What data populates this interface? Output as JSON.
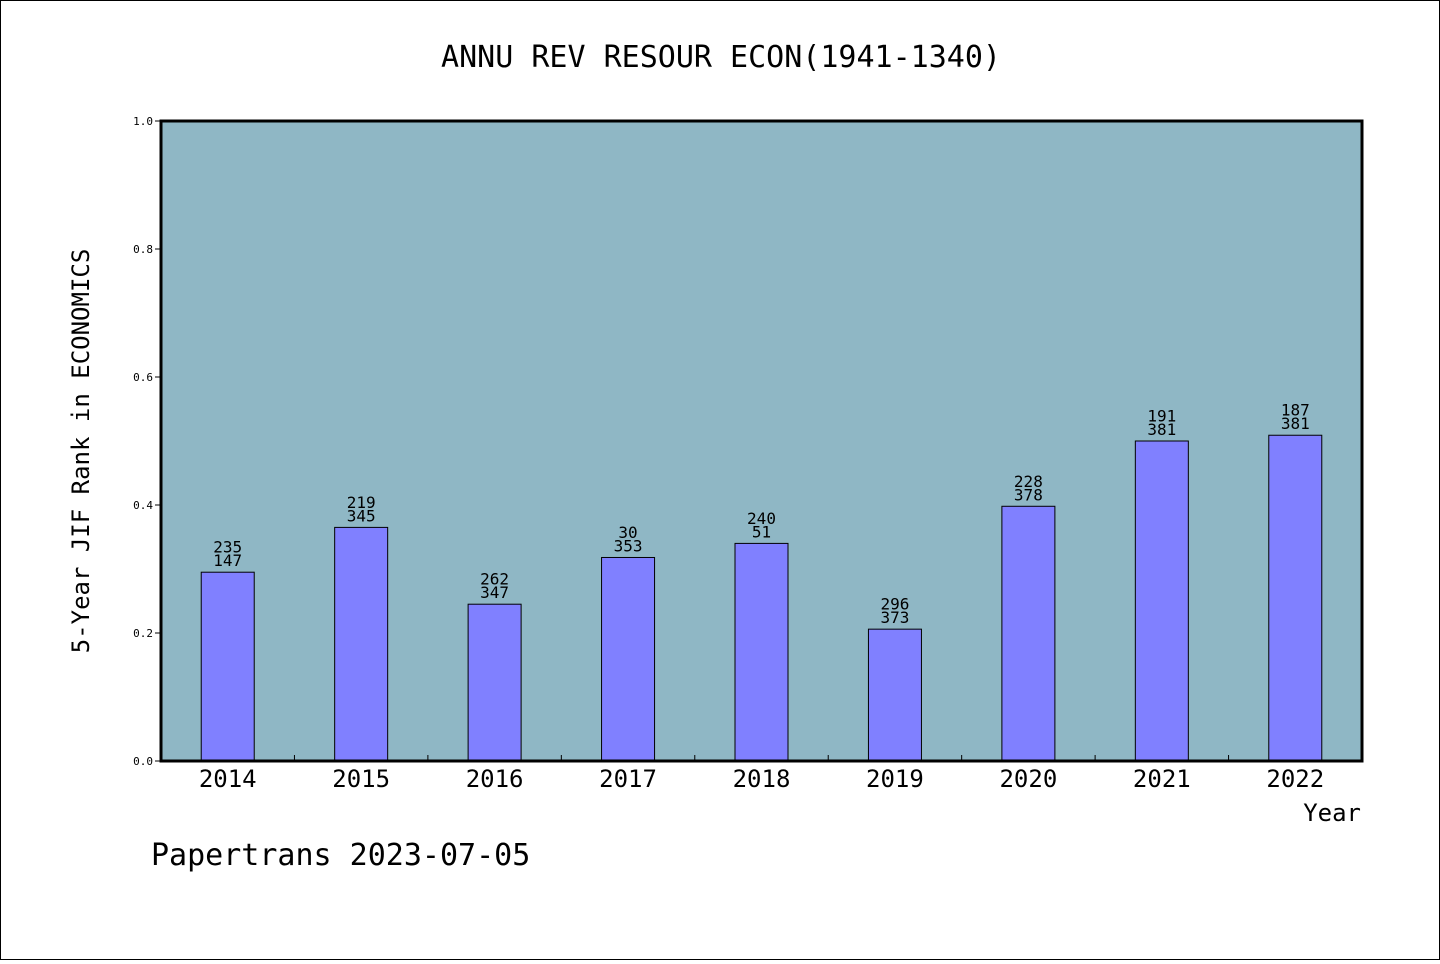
{
  "chart_data": {
    "type": "bar",
    "title": "ANNU REV RESOUR ECON(1941-1340)",
    "xlabel": "Year",
    "ylabel": "5-Year JIF Rank in ECONOMICS",
    "categories": [
      "2014",
      "2015",
      "2016",
      "2017",
      "2018",
      "2019",
      "2020",
      "2021",
      "2022"
    ],
    "values": [
      0.295,
      0.365,
      0.245,
      0.318,
      0.34,
      0.206,
      0.398,
      0.5,
      0.509
    ],
    "bar_labels": [
      [
        "235",
        "147"
      ],
      [
        "219",
        "345"
      ],
      [
        "262",
        "347"
      ],
      [
        "30",
        "353"
      ],
      [
        "240",
        "51"
      ],
      [
        "296",
        "373"
      ],
      [
        "228",
        "378"
      ],
      [
        "191",
        "381"
      ],
      [
        "187",
        "381"
      ]
    ],
    "ylim": [
      0,
      1.0
    ],
    "yticks": [
      "0.0",
      "0.2",
      "0.4",
      "0.6",
      "0.8",
      "1.0"
    ],
    "grid": false,
    "legend": "none",
    "colors": {
      "plot_bg": "#8fb7c5",
      "bar": "#8080ff",
      "bar_edge": "#000000"
    }
  },
  "footer": "Papertrans 2023-07-05"
}
